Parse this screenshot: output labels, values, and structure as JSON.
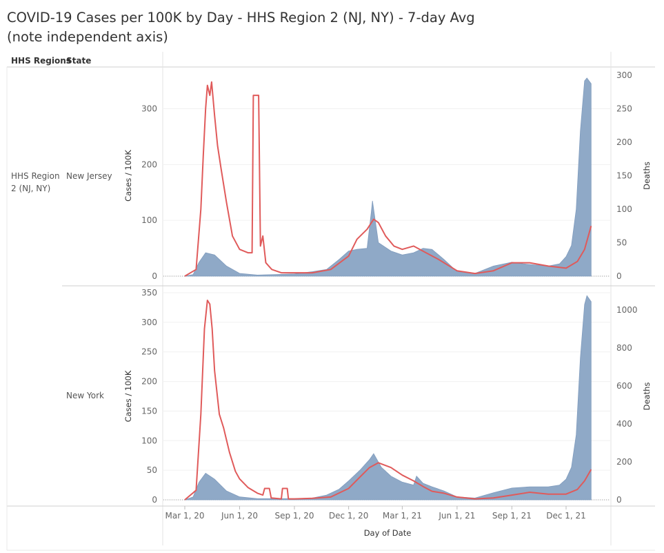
{
  "title": "COVID-19 Cases per 100K by Day - HHS Region 2 (NJ, NY) - 7-day Avg (note independent axis)",
  "header": {
    "col1": "HHS Regions",
    "col2": "State"
  },
  "region_label": "HHS Region 2 (NJ, NY)",
  "colors": {
    "cases_area": "#8fa9c7",
    "deaths_line": "#e05a5a"
  },
  "chart_data": [
    {
      "type": "area",
      "state": "New Jersey",
      "xlabel": "Day of Date",
      "ylabel": "Cases / 100K",
      "y2label": "Deaths",
      "ylim": [
        0,
        360
      ],
      "y2lim": [
        0,
        300
      ],
      "yticks": [
        "0",
        "100",
        "200",
        "300"
      ],
      "y2ticks": [
        "0",
        "50",
        "100",
        "150",
        "200",
        "250",
        "300"
      ],
      "series": [
        {
          "name": "Cases / 100K",
          "axis": "left",
          "x": [
            "2020-03-01",
            "2020-03-15",
            "2020-03-25",
            "2020-04-05",
            "2020-04-20",
            "2020-05-10",
            "2020-06-01",
            "2020-07-01",
            "2020-08-01",
            "2020-09-01",
            "2020-10-01",
            "2020-10-25",
            "2020-11-15",
            "2020-12-01",
            "2020-12-15",
            "2021-01-01",
            "2021-01-08",
            "2021-01-10",
            "2021-01-20",
            "2021-02-10",
            "2021-03-01",
            "2021-03-20",
            "2021-04-05",
            "2021-04-20",
            "2021-05-10",
            "2021-06-01",
            "2021-07-01",
            "2021-08-01",
            "2021-09-01",
            "2021-09-20",
            "2021-10-10",
            "2021-11-01",
            "2021-11-20",
            "2021-12-01",
            "2021-12-10",
            "2021-12-18",
            "2021-12-25",
            "2022-01-01",
            "2022-01-05",
            "2022-01-12"
          ],
          "values": [
            0,
            3,
            25,
            42,
            38,
            18,
            5,
            2,
            3,
            4,
            8,
            12,
            30,
            45,
            48,
            50,
            115,
            135,
            60,
            45,
            38,
            42,
            50,
            48,
            30,
            8,
            5,
            18,
            25,
            22,
            20,
            18,
            22,
            35,
            55,
            120,
            260,
            350,
            355,
            345
          ]
        },
        {
          "name": "Deaths",
          "axis": "right",
          "x": [
            "2020-03-01",
            "2020-03-20",
            "2020-03-28",
            "2020-04-01",
            "2020-04-05",
            "2020-04-08",
            "2020-04-12",
            "2020-04-15",
            "2020-04-20",
            "2020-04-25",
            "2020-05-01",
            "2020-05-10",
            "2020-05-20",
            "2020-06-01",
            "2020-06-15",
            "2020-06-22",
            "2020-06-24",
            "2020-06-30",
            "2020-07-03",
            "2020-07-06",
            "2020-07-10",
            "2020-07-15",
            "2020-07-25",
            "2020-08-10",
            "2020-09-01",
            "2020-10-01",
            "2020-11-01",
            "2020-12-01",
            "2020-12-15",
            "2021-01-01",
            "2021-01-12",
            "2021-01-20",
            "2021-02-01",
            "2021-02-15",
            "2021-03-01",
            "2021-03-20",
            "2021-04-10",
            "2021-05-01",
            "2021-06-01",
            "2021-07-01",
            "2021-08-01",
            "2021-09-01",
            "2021-10-01",
            "2021-11-01",
            "2021-12-01",
            "2021-12-20",
            "2022-01-01",
            "2022-01-12"
          ],
          "values": [
            0,
            10,
            100,
            180,
            250,
            285,
            270,
            290,
            240,
            195,
            160,
            110,
            60,
            40,
            35,
            35,
            270,
            270,
            270,
            45,
            60,
            20,
            10,
            5,
            5,
            5,
            10,
            30,
            55,
            70,
            85,
            80,
            60,
            45,
            40,
            45,
            35,
            25,
            8,
            4,
            8,
            20,
            20,
            15,
            12,
            22,
            40,
            75
          ]
        }
      ]
    },
    {
      "type": "area",
      "state": "New York",
      "xlabel": "Day of Date",
      "ylabel": "Cases / 100K",
      "y2label": "Deaths",
      "ylim": [
        0,
        350
      ],
      "y2lim": [
        0,
        1090
      ],
      "yticks": [
        "0",
        "50",
        "100",
        "150",
        "200",
        "250",
        "300",
        "350"
      ],
      "y2ticks": [
        "0",
        "200",
        "400",
        "600",
        "800",
        "1000"
      ],
      "series": [
        {
          "name": "Cases / 100K",
          "axis": "left",
          "x": [
            "2020-03-01",
            "2020-03-15",
            "2020-03-25",
            "2020-04-05",
            "2020-04-20",
            "2020-05-10",
            "2020-06-01",
            "2020-07-01",
            "2020-08-01",
            "2020-09-01",
            "2020-10-01",
            "2020-10-25",
            "2020-11-15",
            "2020-12-01",
            "2020-12-20",
            "2021-01-05",
            "2021-01-12",
            "2021-01-25",
            "2021-02-10",
            "2021-03-01",
            "2021-03-20",
            "2021-03-25",
            "2021-04-05",
            "2021-04-20",
            "2021-05-10",
            "2021-06-01",
            "2021-07-01",
            "2021-08-01",
            "2021-09-01",
            "2021-10-01",
            "2021-11-01",
            "2021-11-20",
            "2021-12-01",
            "2021-12-10",
            "2021-12-18",
            "2021-12-25",
            "2022-01-01",
            "2022-01-05",
            "2022-01-12"
          ],
          "values": [
            0,
            5,
            30,
            45,
            35,
            15,
            5,
            2,
            2,
            2,
            3,
            8,
            18,
            32,
            50,
            68,
            78,
            55,
            40,
            30,
            25,
            40,
            28,
            22,
            15,
            5,
            3,
            12,
            20,
            22,
            22,
            25,
            35,
            55,
            110,
            240,
            330,
            345,
            335
          ]
        },
        {
          "name": "Deaths",
          "axis": "right",
          "x": [
            "2020-03-01",
            "2020-03-20",
            "2020-03-28",
            "2020-04-03",
            "2020-04-08",
            "2020-04-12",
            "2020-04-16",
            "2020-04-20",
            "2020-04-28",
            "2020-05-05",
            "2020-05-15",
            "2020-05-25",
            "2020-06-01",
            "2020-06-15",
            "2020-07-01",
            "2020-07-10",
            "2020-07-13",
            "2020-07-21",
            "2020-07-24",
            "2020-08-10",
            "2020-08-12",
            "2020-08-20",
            "2020-08-22",
            "2020-09-01",
            "2020-10-01",
            "2020-11-01",
            "2020-12-01",
            "2020-12-20",
            "2021-01-05",
            "2021-01-20",
            "2021-02-10",
            "2021-03-01",
            "2021-03-20",
            "2021-04-05",
            "2021-04-20",
            "2021-05-10",
            "2021-06-01",
            "2021-07-01",
            "2021-08-01",
            "2021-09-01",
            "2021-10-01",
            "2021-11-01",
            "2021-12-01",
            "2021-12-20",
            "2022-01-01",
            "2022-01-12"
          ],
          "values": [
            0,
            50,
            450,
            900,
            1050,
            1030,
            900,
            680,
            450,
            380,
            250,
            150,
            110,
            65,
            35,
            25,
            60,
            60,
            10,
            5,
            60,
            60,
            5,
            5,
            8,
            15,
            60,
            120,
            170,
            195,
            170,
            130,
            100,
            70,
            45,
            35,
            15,
            5,
            10,
            25,
            40,
            30,
            30,
            55,
            100,
            160
          ]
        }
      ]
    }
  ],
  "x_axis": {
    "ticks": [
      "Mar 1, 20",
      "Jun 1, 20",
      "Sep 1, 20",
      "Dec 1, 20",
      "Mar 1, 21",
      "Jun 1, 21",
      "Sep 1, 21",
      "Dec 1, 21"
    ],
    "tick_dates": [
      "2020-03-01",
      "2020-06-01",
      "2020-09-01",
      "2020-12-01",
      "2021-03-01",
      "2021-06-01",
      "2021-09-01",
      "2021-12-01"
    ]
  }
}
